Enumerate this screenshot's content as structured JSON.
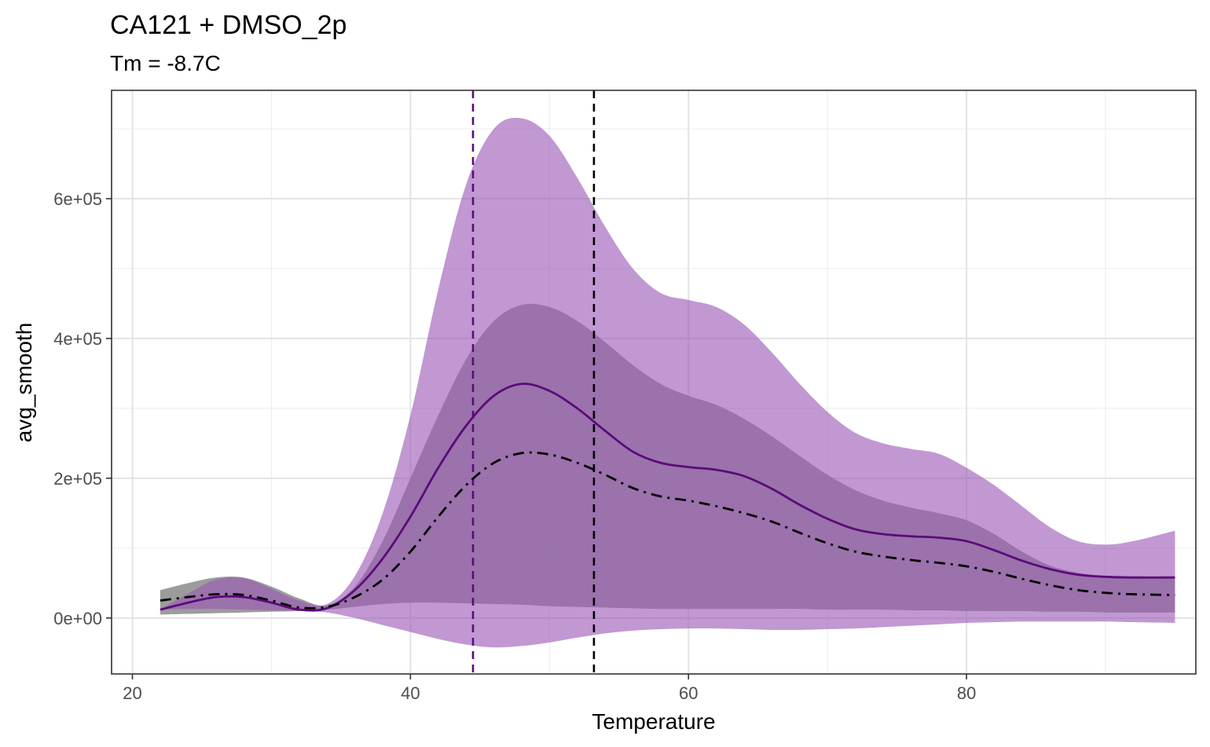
{
  "chart_data": {
    "type": "area",
    "title": "CA121 + DMSO_2p",
    "subtitle": "Tm = -8.7C",
    "xlabel": "Temperature",
    "ylabel": "avg_smooth",
    "xlim": [
      18.5,
      96.5
    ],
    "ylim": [
      -80000,
      755000
    ],
    "x_ticks": [
      20,
      40,
      60,
      80
    ],
    "x_tick_labels": [
      "20",
      "40",
      "60",
      "80"
    ],
    "y_ticks": [
      0,
      200000,
      400000,
      600000
    ],
    "y_tick_labels": [
      "0e+00",
      "2e+05",
      "4e+05",
      "6e+05"
    ],
    "grid": true,
    "colors": {
      "purple_ribbon": "#9b59b6",
      "gray_ribbon": "#808080",
      "purple_line": "#5c0a7a",
      "black_line": "#000000",
      "vline_purple": "#5c0a7a",
      "vline_black": "#000000"
    },
    "vlines": [
      {
        "x": 44.5,
        "style": "dashed",
        "color": "#5c0a7a"
      },
      {
        "x": 53.2,
        "style": "dashed",
        "color": "#000000"
      }
    ],
    "ribbon_purple": {
      "x": [
        22,
        24,
        26,
        28,
        30,
        32,
        34,
        36,
        38,
        40,
        42,
        44,
        46,
        48,
        50,
        52,
        54,
        56,
        58,
        60,
        62,
        64,
        66,
        68,
        70,
        72,
        74,
        76,
        78,
        80,
        82,
        84,
        86,
        88,
        90,
        92,
        95
      ],
      "lower": [
        12000,
        13000,
        13000,
        12000,
        11000,
        10000,
        8000,
        0,
        -10000,
        -20000,
        -30000,
        -38000,
        -42000,
        -40000,
        -35000,
        -28000,
        -22000,
        -18000,
        -16000,
        -15000,
        -15000,
        -16000,
        -17000,
        -17000,
        -16000,
        -15000,
        -13000,
        -11000,
        -9000,
        -7000,
        -6000,
        -5000,
        -5000,
        -5000,
        -5000,
        -6000,
        -7000
      ],
      "upper": [
        12000,
        35000,
        55000,
        57000,
        42000,
        25000,
        20000,
        60000,
        150000,
        290000,
        470000,
        620000,
        700000,
        715000,
        690000,
        630000,
        560000,
        500000,
        465000,
        455000,
        445000,
        420000,
        380000,
        335000,
        295000,
        265000,
        250000,
        242000,
        235000,
        215000,
        190000,
        160000,
        130000,
        110000,
        105000,
        110000,
        125000
      ]
    },
    "ribbon_gray": {
      "x": [
        22,
        24,
        26,
        28,
        30,
        32,
        34,
        36,
        38,
        40,
        42,
        44,
        46,
        48,
        50,
        52,
        54,
        56,
        58,
        60,
        62,
        64,
        66,
        68,
        70,
        72,
        74,
        76,
        78,
        80,
        82,
        84,
        86,
        88,
        90,
        92,
        95
      ],
      "lower": [
        5000,
        6000,
        7000,
        8000,
        9000,
        10000,
        12000,
        16000,
        20000,
        22000,
        22000,
        21000,
        20000,
        19000,
        17000,
        16000,
        15000,
        14000,
        13000,
        13000,
        13000,
        13000,
        13000,
        13000,
        12000,
        12000,
        12000,
        11000,
        11000,
        10000,
        10000,
        10000,
        9000,
        9000,
        8000,
        8000,
        8000
      ],
      "upper": [
        40000,
        50000,
        58000,
        58000,
        45000,
        28000,
        18000,
        45000,
        110000,
        200000,
        290000,
        370000,
        425000,
        448000,
        445000,
        425000,
        395000,
        362000,
        335000,
        318000,
        305000,
        285000,
        260000,
        232000,
        205000,
        183000,
        168000,
        158000,
        150000,
        140000,
        120000,
        95000,
        75000,
        65000,
        60000,
        58000,
        58000
      ]
    },
    "series": [
      {
        "x": [
          22,
          24,
          26,
          28,
          30,
          32,
          34,
          36,
          38,
          40,
          42,
          44,
          46,
          48,
          50,
          52,
          54,
          56,
          58,
          60,
          62,
          64,
          66,
          68,
          70,
          72,
          74,
          76,
          78,
          80,
          82,
          84,
          86,
          88,
          90,
          92,
          95
        ],
        "values": [
          12000,
          22000,
          30000,
          30000,
          22000,
          12000,
          14000,
          40000,
          85000,
          145000,
          215000,
          275000,
          318000,
          335000,
          325000,
          300000,
          268000,
          238000,
          222000,
          216000,
          212000,
          203000,
          185000,
          162000,
          142000,
          127000,
          120000,
          117000,
          115000,
          110000,
          97000,
          82000,
          70000,
          62000,
          59000,
          58000,
          58000
        ],
        "color": "#5c0a7a",
        "style": "solid"
      },
      {
        "x": [
          22,
          24,
          26,
          28,
          30,
          32,
          34,
          36,
          38,
          40,
          42,
          44,
          46,
          48,
          50,
          52,
          54,
          56,
          58,
          60,
          62,
          64,
          66,
          68,
          70,
          72,
          74,
          76,
          78,
          80,
          82,
          84,
          86,
          88,
          90,
          92,
          95
        ],
        "values": [
          25000,
          30000,
          34000,
          33000,
          25000,
          15000,
          16000,
          30000,
          55000,
          95000,
          145000,
          190000,
          222000,
          236000,
          234000,
          222000,
          205000,
          186000,
          174000,
          168000,
          160000,
          150000,
          138000,
          122000,
          107000,
          95000,
          88000,
          83000,
          79000,
          74000,
          66000,
          56000,
          47000,
          40000,
          36000,
          34000,
          33000
        ],
        "color": "#000000",
        "style": "dashdot"
      }
    ]
  }
}
